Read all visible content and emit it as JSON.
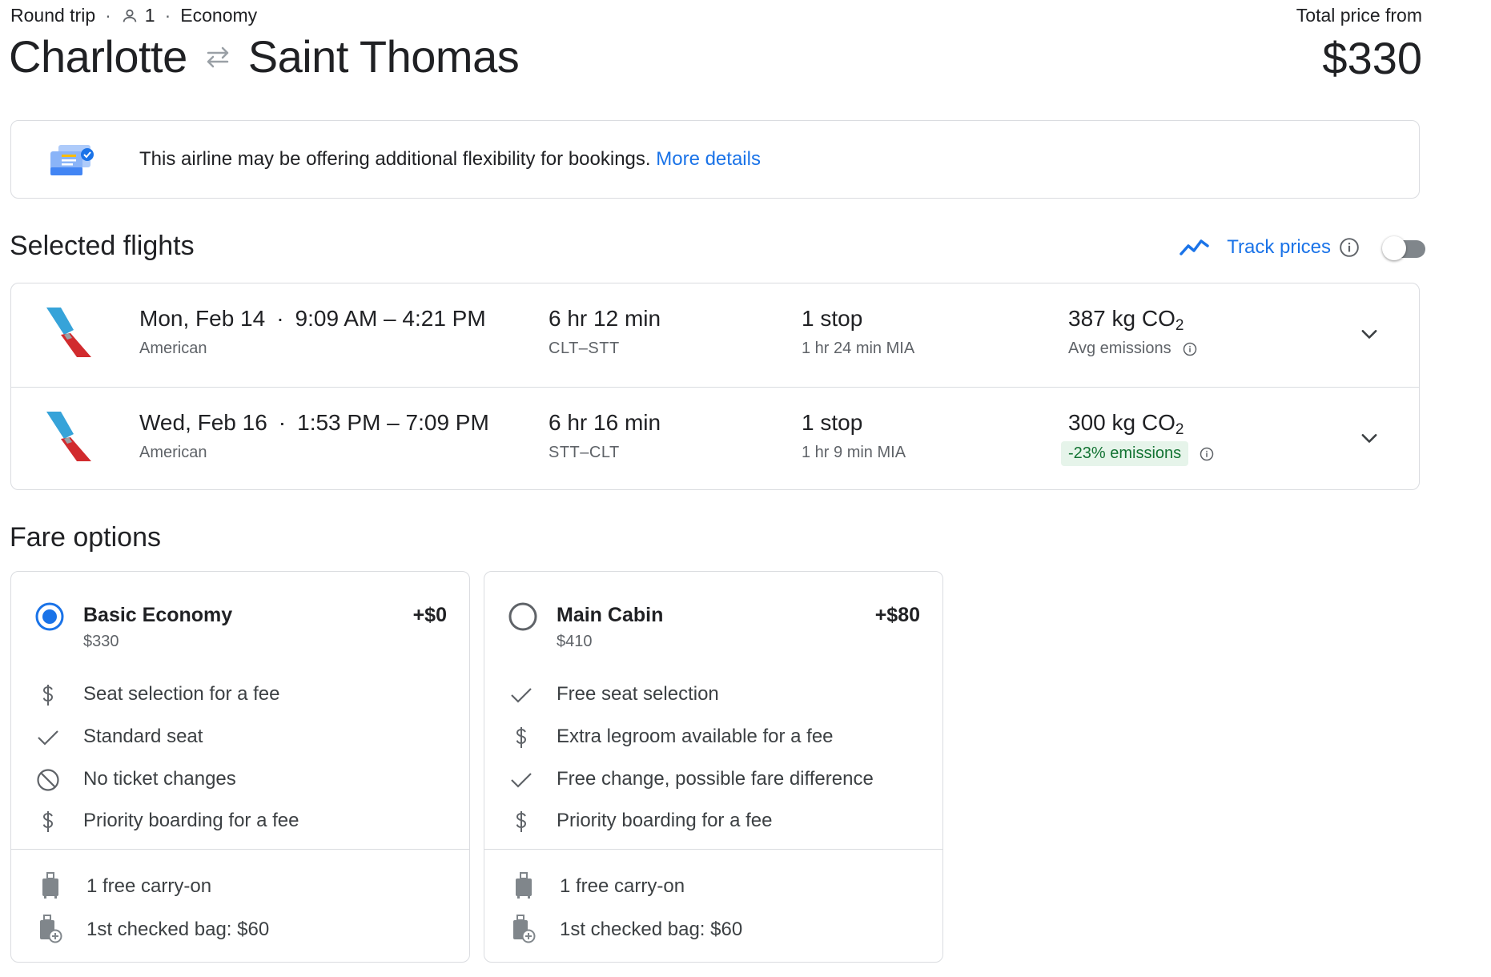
{
  "header": {
    "trip_type": "Round trip",
    "passengers": "1",
    "cabin": "Economy",
    "origin": "Charlotte",
    "destination": "Saint Thomas",
    "total_label": "Total price from",
    "total_price": "$330"
  },
  "banner": {
    "text": "This airline may be offering additional flexibility for bookings.",
    "link": "More details",
    "icon": "ticket-flex-icon"
  },
  "selected_flights": {
    "title": "Selected flights",
    "track_prices_label": "Track prices",
    "track_prices_enabled": false,
    "flights": [
      {
        "date": "Mon, Feb 14",
        "times": "9:09 AM – 4:21 PM",
        "airline": "American",
        "duration": "6 hr 12 min",
        "route": "CLT–STT",
        "stops": "1 stop",
        "layover": "1 hr 24 min MIA",
        "co2_value": "387 kg CO",
        "co2_sub": "2",
        "emissions_label": "Avg emissions",
        "emissions_badge": ""
      },
      {
        "date": "Wed, Feb 16",
        "times": "1:53 PM – 7:09 PM",
        "airline": "American",
        "duration": "6 hr 16 min",
        "route": "STT–CLT",
        "stops": "1 stop",
        "layover": "1 hr 9 min MIA",
        "co2_value": "300 kg CO",
        "co2_sub": "2",
        "emissions_label": "",
        "emissions_badge": "-23% emissions"
      }
    ]
  },
  "fare_options": {
    "title": "Fare options",
    "fares": [
      {
        "name": "Basic Economy",
        "price": "$330",
        "delta": "+$0",
        "selected": true,
        "features": [
          {
            "icon": "dollar-icon",
            "text": "Seat selection for a fee"
          },
          {
            "icon": "check-icon",
            "text": "Standard seat"
          },
          {
            "icon": "no-entry-icon",
            "text": "No ticket changes"
          },
          {
            "icon": "dollar-icon",
            "text": "Priority boarding for a fee"
          }
        ],
        "bags": [
          {
            "icon": "carry-on-bag-icon",
            "text": "1 free carry-on"
          },
          {
            "icon": "checked-bag-icon",
            "text": "1st checked bag: $60"
          }
        ]
      },
      {
        "name": "Main Cabin",
        "price": "$410",
        "delta": "+$80",
        "selected": false,
        "features": [
          {
            "icon": "check-icon",
            "text": "Free seat selection"
          },
          {
            "icon": "dollar-icon",
            "text": "Extra legroom available for a fee"
          },
          {
            "icon": "check-icon",
            "text": "Free change, possible fare difference"
          },
          {
            "icon": "dollar-icon",
            "text": "Priority boarding for a fee"
          }
        ],
        "bags": [
          {
            "icon": "carry-on-bag-icon",
            "text": "1 free carry-on"
          },
          {
            "icon": "checked-bag-icon",
            "text": "1st checked bag: $60"
          }
        ]
      }
    ]
  },
  "colors": {
    "accent": "#1a73e8",
    "text": "#202124",
    "muted": "#5f6368",
    "border": "#dadce0",
    "badge_bg": "#e6f4ea",
    "badge_text": "#137333",
    "american_blue": "#36a3d9",
    "american_red": "#d12b2e"
  }
}
